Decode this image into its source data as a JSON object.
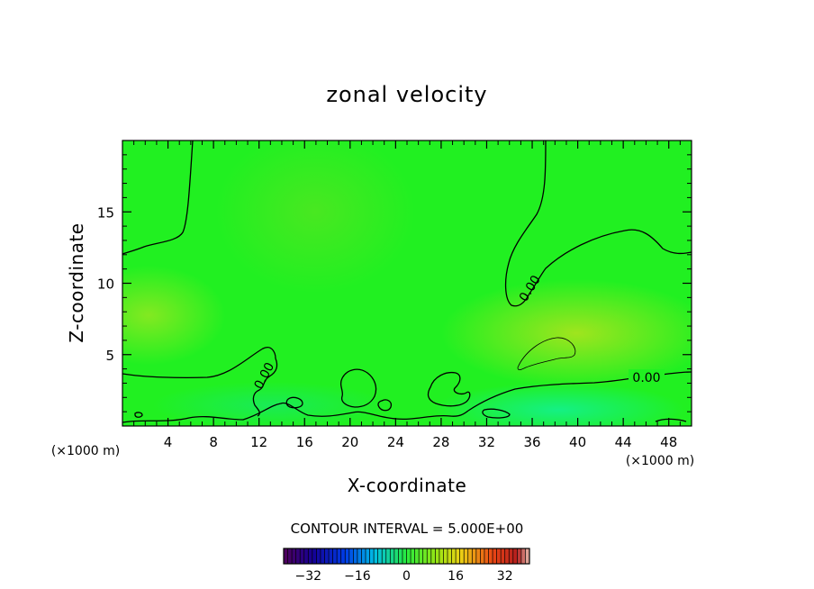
{
  "chart_data": {
    "type": "heatmap",
    "title": "zonal velocity",
    "xlabel": "X-coordinate",
    "ylabel": "Z-coordinate",
    "x_unit_label": "(×1000 m)",
    "y_unit_label": "(×1000 m)",
    "xlim": [
      0,
      50
    ],
    "ylim": [
      0,
      20
    ],
    "x_ticks": [
      4,
      8,
      12,
      16,
      20,
      24,
      28,
      32,
      36,
      40,
      44,
      48
    ],
    "y_ticks": [
      5,
      10,
      15
    ],
    "contour_interval_text": "CONTOUR INTERVAL = 5.000E+00",
    "contour_labels": [
      "0.00",
      "0.00",
      "0.00"
    ],
    "colorbar": {
      "range": [
        -40,
        40
      ],
      "tick_values": [
        -32,
        -16,
        0,
        16,
        32
      ],
      "tick_labels": [
        "−32",
        "−16",
        "0",
        "16",
        "32"
      ]
    },
    "field_zero_color": "#21f021",
    "grid": false
  }
}
